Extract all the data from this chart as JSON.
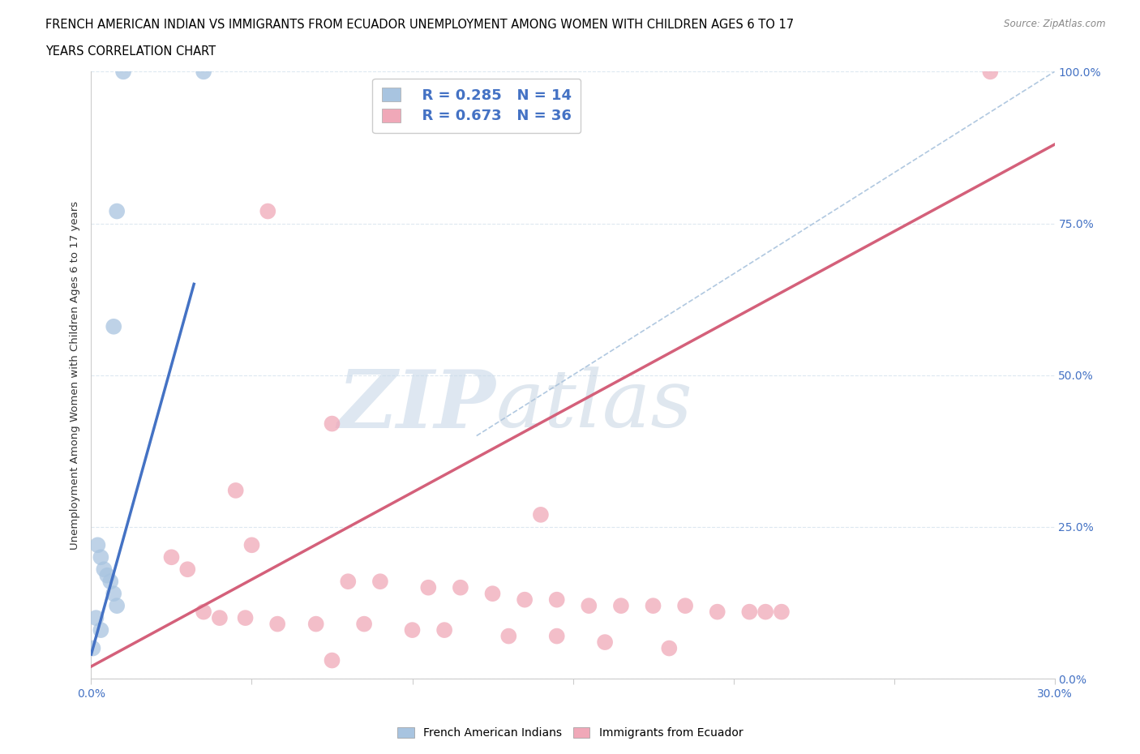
{
  "title_line1": "FRENCH AMERICAN INDIAN VS IMMIGRANTS FROM ECUADOR UNEMPLOYMENT AMONG WOMEN WITH CHILDREN AGES 6 TO 17",
  "title_line2": "YEARS CORRELATION CHART",
  "source": "Source: ZipAtlas.com",
  "ylabel": "Unemployment Among Women with Children Ages 6 to 17 years",
  "ytick_labels": [
    "0.0%",
    "25.0%",
    "50.0%",
    "75.0%",
    "100.0%"
  ],
  "ytick_vals": [
    0,
    25,
    50,
    75,
    100
  ],
  "xtick_labels": [
    "0.0%",
    "30.0%"
  ],
  "xtick_vals": [
    0,
    30
  ],
  "legend_blue_r": "R = 0.285",
  "legend_blue_n": "N = 14",
  "legend_pink_r": "R = 0.673",
  "legend_pink_n": "N = 36",
  "blue_scatter_color": "#a8c4e0",
  "pink_scatter_color": "#f0a8b8",
  "blue_line_color": "#4472c4",
  "pink_line_color": "#d4607a",
  "diag_line_color": "#b0c8e0",
  "legend_text_color": "#4472c4",
  "blue_scatter": [
    [
      1.0,
      100
    ],
    [
      3.5,
      100
    ],
    [
      0.8,
      77
    ],
    [
      0.7,
      58
    ],
    [
      0.2,
      22
    ],
    [
      0.3,
      20
    ],
    [
      0.4,
      18
    ],
    [
      0.5,
      17
    ],
    [
      0.6,
      16
    ],
    [
      0.7,
      14
    ],
    [
      0.8,
      12
    ],
    [
      0.15,
      10
    ],
    [
      0.3,
      8
    ],
    [
      0.05,
      5
    ]
  ],
  "pink_scatter": [
    [
      28.0,
      100
    ],
    [
      5.5,
      77
    ],
    [
      7.5,
      42
    ],
    [
      14.0,
      27
    ],
    [
      4.5,
      31
    ],
    [
      5.0,
      22
    ],
    [
      2.5,
      20
    ],
    [
      3.0,
      18
    ],
    [
      8.0,
      16
    ],
    [
      9.0,
      16
    ],
    [
      10.5,
      15
    ],
    [
      11.5,
      15
    ],
    [
      12.5,
      14
    ],
    [
      13.5,
      13
    ],
    [
      14.5,
      13
    ],
    [
      15.5,
      12
    ],
    [
      16.5,
      12
    ],
    [
      17.5,
      12
    ],
    [
      18.5,
      12
    ],
    [
      19.5,
      11
    ],
    [
      20.5,
      11
    ],
    [
      21.0,
      11
    ],
    [
      21.5,
      11
    ],
    [
      3.5,
      11
    ],
    [
      4.0,
      10
    ],
    [
      4.8,
      10
    ],
    [
      5.8,
      9
    ],
    [
      7.0,
      9
    ],
    [
      8.5,
      9
    ],
    [
      10.0,
      8
    ],
    [
      11.0,
      8
    ],
    [
      13.0,
      7
    ],
    [
      14.5,
      7
    ],
    [
      16.0,
      6
    ],
    [
      18.0,
      5
    ],
    [
      7.5,
      3
    ]
  ],
  "blue_line_x": [
    0.0,
    3.2
  ],
  "blue_line_y": [
    4.0,
    65.0
  ],
  "pink_line_x": [
    0.0,
    30.0
  ],
  "pink_line_y": [
    2.0,
    88.0
  ],
  "diag_line_x": [
    12.0,
    30.0
  ],
  "diag_line_y": [
    40.0,
    100.0
  ],
  "watermark_zip": "ZIP",
  "watermark_atlas": "atlas",
  "background_color": "#ffffff",
  "grid_color": "#dde8f0"
}
